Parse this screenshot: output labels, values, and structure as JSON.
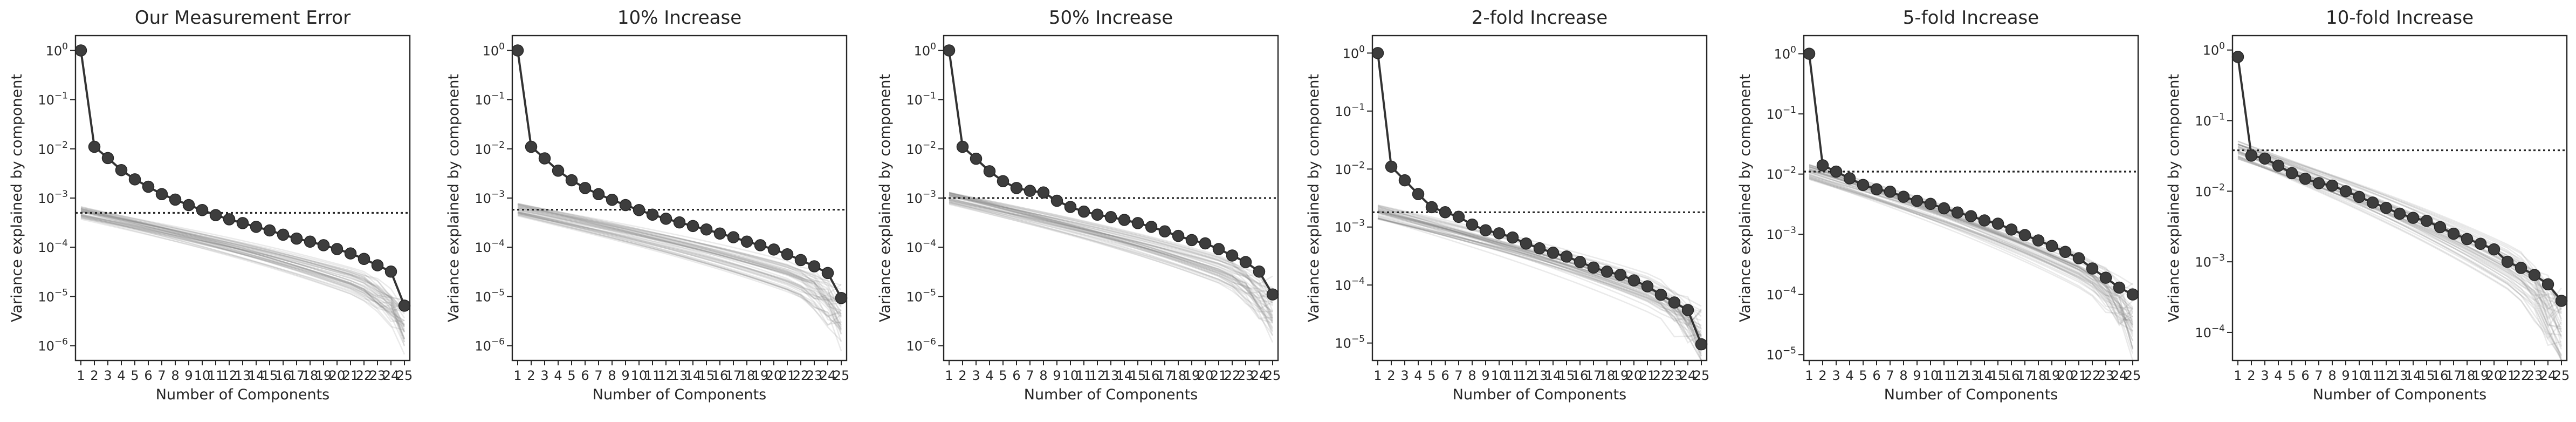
{
  "figure": {
    "background": "#ffffff",
    "observed_color": "#3d3d3d",
    "null_color": "#7a7a7a",
    "threshold_color": "#262626"
  },
  "chart_data": [
    {
      "type": "line",
      "title": "Our Measurement Error",
      "xlabel": "Number of Components",
      "ylabel": "Variance explained by component",
      "yscale": "log",
      "ylim": [
        5e-07,
        2
      ],
      "yticks": [
        -6,
        -5,
        -4,
        -3,
        -2,
        -1,
        0
      ],
      "x": [
        1,
        2,
        3,
        4,
        5,
        6,
        7,
        8,
        9,
        10,
        11,
        12,
        13,
        14,
        15,
        16,
        17,
        18,
        19,
        20,
        21,
        22,
        23,
        24,
        25
      ],
      "threshold": 0.0005,
      "null_band": {
        "start": 0.0005,
        "end": 1.2e-05,
        "lower_end": 1.5e-06,
        "spread": 0.13
      },
      "series": [
        {
          "values": [
            1.0,
            0.011,
            0.0065,
            0.0037,
            0.0024,
            0.0017,
            0.0012,
            0.00093,
            0.00072,
            0.00057,
            0.00045,
            0.00037,
            0.00031,
            0.00026,
            0.00022,
            0.00018,
            0.00015,
            0.00013,
            0.00011,
            9.2e-05,
            7.5e-05,
            5.8e-05,
            4.3e-05,
            3.2e-05,
            6.5e-06
          ]
        }
      ],
      "legend": "none",
      "grid": false
    },
    {
      "type": "line",
      "title": "10% Increase",
      "xlabel": "Number of Components",
      "ylabel": "Variance explained by component",
      "yscale": "log",
      "ylim": [
        5e-07,
        2
      ],
      "yticks": [
        -6,
        -5,
        -4,
        -3,
        -2,
        -1,
        0
      ],
      "x": [
        1,
        2,
        3,
        4,
        5,
        6,
        7,
        8,
        9,
        10,
        11,
        12,
        13,
        14,
        15,
        16,
        17,
        18,
        19,
        20,
        21,
        22,
        23,
        24,
        25
      ],
      "threshold": 0.00058,
      "null_band": {
        "start": 0.00058,
        "end": 1.4e-05,
        "lower_end": 1.8e-06,
        "spread": 0.13
      },
      "series": [
        {
          "values": [
            1.0,
            0.011,
            0.0064,
            0.0036,
            0.0023,
            0.0016,
            0.0012,
            0.00092,
            0.00072,
            0.00057,
            0.00046,
            0.00038,
            0.00032,
            0.00027,
            0.00023,
            0.00019,
            0.00016,
            0.00013,
            0.00011,
            9e-05,
            7.2e-05,
            5.5e-05,
            4.1e-05,
            3e-05,
            9.3e-06
          ]
        }
      ],
      "legend": "none",
      "grid": false
    },
    {
      "type": "line",
      "title": "50% Increase",
      "xlabel": "Number of Components",
      "ylabel": "Variance explained by component",
      "yscale": "log",
      "ylim": [
        5e-07,
        2
      ],
      "yticks": [
        -6,
        -5,
        -4,
        -3,
        -2,
        -1,
        0
      ],
      "x": [
        1,
        2,
        3,
        4,
        5,
        6,
        7,
        8,
        9,
        10,
        11,
        12,
        13,
        14,
        15,
        16,
        17,
        18,
        19,
        20,
        21,
        22,
        23,
        24,
        25
      ],
      "threshold": 0.001,
      "null_band": {
        "start": 0.001,
        "end": 2e-05,
        "lower_end": 2.6e-06,
        "spread": 0.13
      },
      "series": [
        {
          "values": [
            1.0,
            0.011,
            0.0063,
            0.0035,
            0.0022,
            0.0016,
            0.0014,
            0.0013,
            0.00088,
            0.00066,
            0.00053,
            0.00046,
            0.00041,
            0.00036,
            0.00031,
            0.00026,
            0.00021,
            0.00017,
            0.00014,
            0.00012,
            9.2e-05,
            6.8e-05,
            5e-05,
            3.2e-05,
            1.1e-05
          ]
        }
      ],
      "legend": "none",
      "grid": false
    },
    {
      "type": "line",
      "title": "2-fold Increase",
      "xlabel": "Number of Components",
      "ylabel": "Variance explained by component",
      "yscale": "log",
      "ylim": [
        5e-06,
        2
      ],
      "yticks": [
        -5,
        -4,
        -3,
        -2,
        -1,
        0
      ],
      "x": [
        1,
        2,
        3,
        4,
        5,
        6,
        7,
        8,
        9,
        10,
        11,
        12,
        13,
        14,
        15,
        16,
        17,
        18,
        19,
        20,
        21,
        22,
        23,
        24,
        25
      ],
      "threshold": 0.0018,
      "null_band": {
        "start": 0.0018,
        "end": 4e-05,
        "lower_end": 5e-06,
        "spread": 0.13
      },
      "series": [
        {
          "values": [
            1.0,
            0.011,
            0.0064,
            0.0037,
            0.0022,
            0.0018,
            0.0015,
            0.0011,
            0.00088,
            0.00078,
            0.00066,
            0.00052,
            0.00043,
            0.00036,
            0.00031,
            0.00025,
            0.0002,
            0.00017,
            0.00015,
            0.00012,
            9.5e-05,
            6.8e-05,
            5e-05,
            3.7e-05,
            9.5e-06
          ]
        }
      ],
      "legend": "none",
      "grid": false
    },
    {
      "type": "line",
      "title": "5-fold Increase",
      "xlabel": "Number of Components",
      "ylabel": "Variance explained by component",
      "yscale": "log",
      "ylim": [
        8e-06,
        2
      ],
      "yticks": [
        -5,
        -4,
        -3,
        -2,
        -1,
        0
      ],
      "x": [
        1,
        2,
        3,
        4,
        5,
        6,
        7,
        8,
        9,
        10,
        11,
        12,
        13,
        14,
        15,
        16,
        17,
        18,
        19,
        20,
        21,
        22,
        23,
        24,
        25
      ],
      "threshold": 0.011,
      "null_band": {
        "start": 0.011,
        "end": 0.00012,
        "lower_end": 1.5e-05,
        "spread": 0.13
      },
      "series": [
        {
          "values": [
            1.0,
            0.014,
            0.011,
            0.0085,
            0.0066,
            0.0056,
            0.0051,
            0.0042,
            0.0036,
            0.0032,
            0.0027,
            0.0023,
            0.002,
            0.0017,
            0.0015,
            0.0012,
            0.00097,
            0.00079,
            0.00064,
            0.00051,
            0.0004,
            0.00027,
            0.00019,
            0.00013,
            0.0001
          ]
        }
      ],
      "legend": "none",
      "grid": false
    },
    {
      "type": "line",
      "title": "10-fold Increase",
      "xlabel": "Number of Components",
      "ylabel": "Variance explained by component",
      "yscale": "log",
      "ylim": [
        4e-05,
        1.6
      ],
      "yticks": [
        -4,
        -3,
        -2,
        -1,
        0
      ],
      "x": [
        1,
        2,
        3,
        4,
        5,
        6,
        7,
        8,
        9,
        10,
        11,
        12,
        13,
        14,
        15,
        16,
        17,
        18,
        19,
        20,
        21,
        22,
        23,
        24,
        25
      ],
      "threshold": 0.038,
      "null_band": {
        "start": 0.038,
        "end": 0.0004,
        "lower_end": 5e-05,
        "spread": 0.13
      },
      "series": [
        {
          "values": [
            0.8,
            0.032,
            0.029,
            0.023,
            0.018,
            0.015,
            0.013,
            0.012,
            0.01,
            0.0083,
            0.0069,
            0.0058,
            0.0048,
            0.0042,
            0.0038,
            0.0031,
            0.0025,
            0.0021,
            0.0018,
            0.0015,
            0.001,
            0.00082,
            0.00065,
            0.00048,
            0.00028
          ]
        }
      ],
      "legend": "none",
      "grid": false
    }
  ]
}
